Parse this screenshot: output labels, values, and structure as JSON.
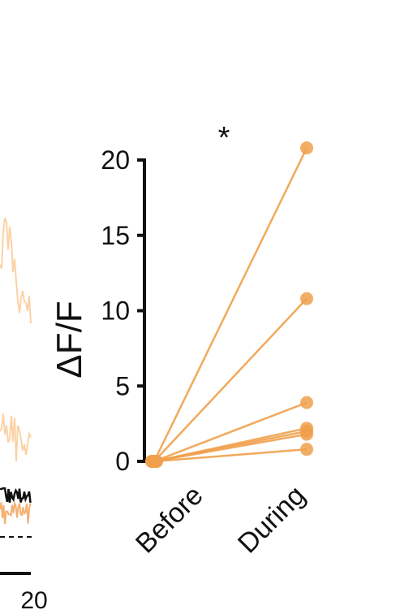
{
  "chart_data": {
    "type": "line",
    "categories": [
      "Before",
      "During"
    ],
    "ylabel": "ΔF/F",
    "ylim": [
      0,
      20
    ],
    "yticks": [
      0,
      5,
      10,
      15,
      20
    ],
    "significance": "*",
    "series": [
      {
        "values": [
          0,
          20.8
        ]
      },
      {
        "values": [
          0,
          10.8
        ]
      },
      {
        "values": [
          0,
          3.9
        ]
      },
      {
        "values": [
          0,
          2.2
        ]
      },
      {
        "values": [
          0,
          2.0
        ]
      },
      {
        "values": [
          0,
          1.8
        ]
      },
      {
        "values": [
          0,
          0.8
        ]
      }
    ],
    "grid": false,
    "line_color": "#f0a04b",
    "point_color": "#f0a04b",
    "axis_color": "#111111"
  },
  "left_panel": {
    "scale_bar_label": "20",
    "trace_light_color": "#fbd2a6",
    "trace_mid_color": "#f5b072",
    "trace_dark_color": "#111111"
  }
}
